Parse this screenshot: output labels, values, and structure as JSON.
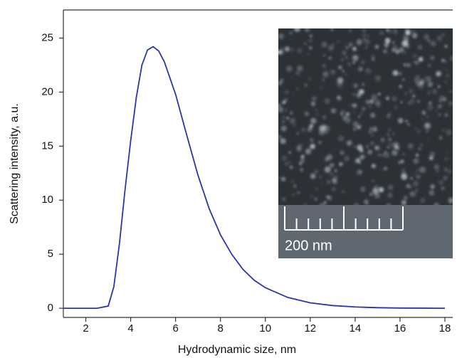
{
  "chart_data": {
    "type": "line",
    "x_label": "Hydrodynamic size, nm",
    "y_label": "Scattering intensity, a.u.",
    "x": [
      1,
      1.5,
      2,
      2.5,
      3,
      3.25,
      3.5,
      3.75,
      4,
      4.25,
      4.5,
      4.75,
      5,
      5.25,
      5.5,
      6,
      6.5,
      7,
      7.5,
      8,
      8.5,
      9,
      9.5,
      10,
      11,
      12,
      13,
      14,
      15,
      16,
      17,
      18
    ],
    "values": [
      0,
      0,
      0,
      0,
      0.2,
      2,
      6,
      11,
      15.5,
      19.5,
      22.5,
      23.9,
      24.2,
      23.8,
      22.8,
      19.8,
      16,
      12.3,
      9.2,
      6.8,
      5,
      3.6,
      2.6,
      1.9,
      1,
      0.5,
      0.25,
      0.12,
      0.05,
      0.02,
      0.01,
      0
    ],
    "color": "#2a36a8",
    "xlim": [
      1,
      18.35
    ],
    "xticks": [
      2,
      4,
      6,
      8,
      10,
      12,
      14,
      16,
      18
    ],
    "ylim": [
      -0.85,
      27.6
    ],
    "yticks": [
      0,
      5,
      10,
      15,
      20,
      25
    ],
    "inset_label": "200 nm"
  }
}
